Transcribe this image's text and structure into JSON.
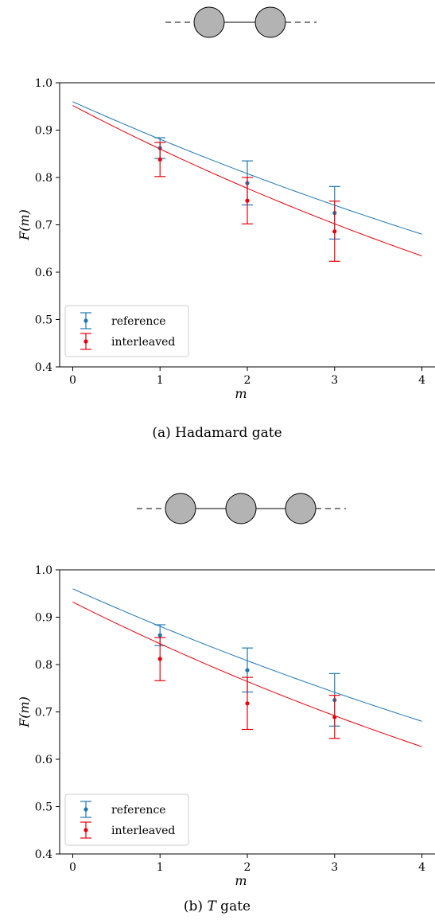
{
  "figure": {
    "panels": [
      {
        "caption_prefix": "(a) ",
        "caption_label": "Hadamard gate",
        "caption_italic": false,
        "diagram": {
          "nodes": 2,
          "node_color": "#b3b3b3"
        }
      },
      {
        "caption_prefix": "(b) ",
        "caption_label": "T",
        "caption_suffix": " gate",
        "caption_italic": true,
        "diagram": {
          "nodes": 3,
          "node_color": "#b3b3b3"
        }
      }
    ]
  },
  "chart_data": [
    {
      "type": "scatter",
      "xlabel": "m",
      "ylabel": "F(m)",
      "xlim": [
        -0.15,
        4.15
      ],
      "ylim": [
        0.4,
        1.0
      ],
      "xticks": [
        "0",
        "1",
        "2",
        "3",
        "4"
      ],
      "yticks": [
        "0.4",
        "0.5",
        "0.6",
        "0.7",
        "0.8",
        "0.9",
        "1.0"
      ],
      "legend_position": "lower-left",
      "series": [
        {
          "name": "reference",
          "color": "#1f77b4",
          "x": [
            1,
            2,
            3
          ],
          "y": [
            0.862,
            0.788,
            0.725
          ],
          "err_low": [
            0.84,
            0.742,
            0.67
          ],
          "err_high": [
            0.884,
            0.835,
            0.781
          ],
          "fit": {
            "a": 0.96,
            "r": 0.9175
          }
        },
        {
          "name": "interleaved",
          "color": "#e8000b",
          "x": [
            1,
            2,
            3
          ],
          "y": [
            0.838,
            0.751,
            0.686
          ],
          "err_low": [
            0.802,
            0.702,
            0.623
          ],
          "err_high": [
            0.874,
            0.8,
            0.75
          ],
          "fit": {
            "a": 0.952,
            "r": 0.9035
          }
        }
      ]
    },
    {
      "type": "scatter",
      "xlabel": "m",
      "ylabel": "F(m)",
      "xlim": [
        -0.15,
        4.15
      ],
      "ylim": [
        0.4,
        1.0
      ],
      "xticks": [
        "0",
        "1",
        "2",
        "3",
        "4"
      ],
      "yticks": [
        "0.4",
        "0.5",
        "0.6",
        "0.7",
        "0.8",
        "0.9",
        "1.0"
      ],
      "legend_position": "lower-left",
      "series": [
        {
          "name": "reference",
          "color": "#1f77b4",
          "x": [
            1,
            2,
            3
          ],
          "y": [
            0.862,
            0.788,
            0.725
          ],
          "err_low": [
            0.84,
            0.742,
            0.67
          ],
          "err_high": [
            0.884,
            0.835,
            0.781
          ],
          "fit": {
            "a": 0.96,
            "r": 0.9175
          }
        },
        {
          "name": "interleaved",
          "color": "#e8000b",
          "x": [
            1,
            2,
            3
          ],
          "y": [
            0.812,
            0.718,
            0.689
          ],
          "err_low": [
            0.766,
            0.663,
            0.644
          ],
          "err_high": [
            0.857,
            0.773,
            0.735
          ],
          "fit": {
            "a": 0.932,
            "r": 0.9055
          }
        }
      ]
    }
  ]
}
